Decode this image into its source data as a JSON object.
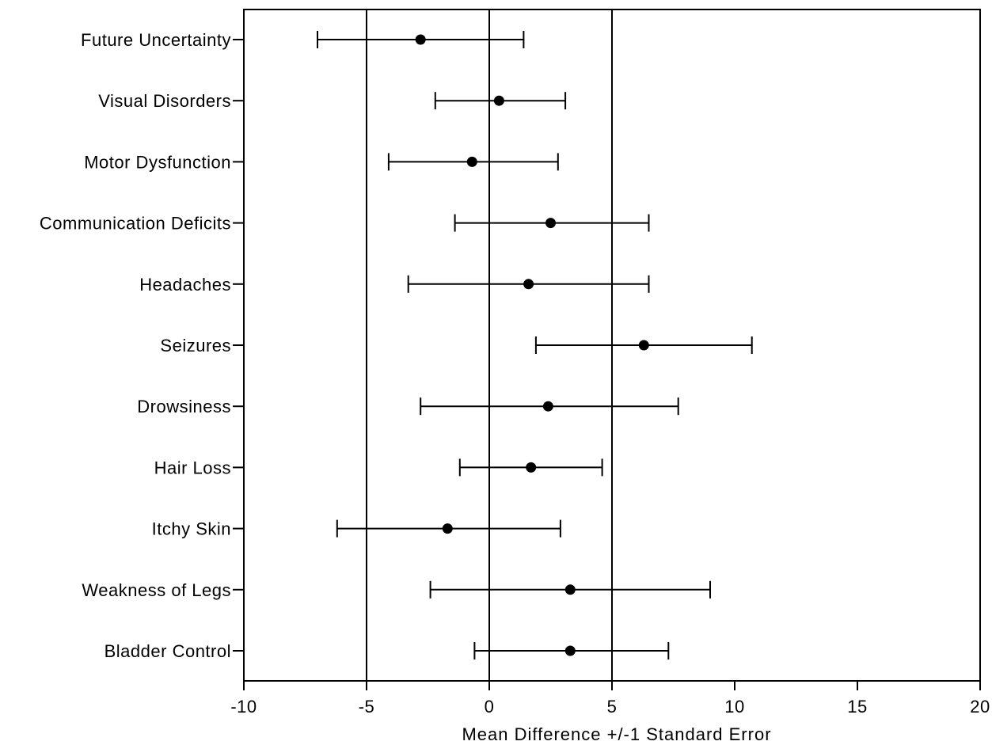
{
  "chart_data": {
    "type": "scatter",
    "subtype": "forest-plot",
    "xlabel": "Mean Difference +/-1 Standard Error",
    "ylabel": "",
    "xlim": [
      -10,
      20
    ],
    "xticks": [
      -10,
      -5,
      0,
      5,
      10,
      15,
      20
    ],
    "xtick_labels": [
      "-10",
      "-5",
      "0",
      "5",
      "10",
      "15",
      "20"
    ],
    "reference_lines": [
      -5,
      0,
      5
    ],
    "grid": false,
    "legend": "none",
    "marker_color": "#000000",
    "categories": [
      "Future Uncertainty",
      "Visual Disorders",
      "Motor Dysfunction",
      "Communication Deficits",
      "Headaches",
      "Seizures",
      "Drowsiness",
      "Hair Loss",
      "Itchy Skin",
      "Weakness of Legs",
      "Bladder Control"
    ],
    "series": [
      {
        "mean": [
          -2.8,
          0.4,
          -0.7,
          2.5,
          1.6,
          6.3,
          2.4,
          1.7,
          -1.7,
          3.3,
          3.3
        ],
        "lower": [
          -7.0,
          -2.2,
          -4.1,
          -1.4,
          -3.3,
          1.9,
          -2.8,
          -1.2,
          -6.2,
          -2.4,
          -0.6
        ],
        "upper": [
          1.4,
          3.1,
          2.8,
          6.5,
          6.5,
          10.7,
          7.7,
          4.6,
          2.9,
          9.0,
          7.3
        ]
      }
    ]
  }
}
